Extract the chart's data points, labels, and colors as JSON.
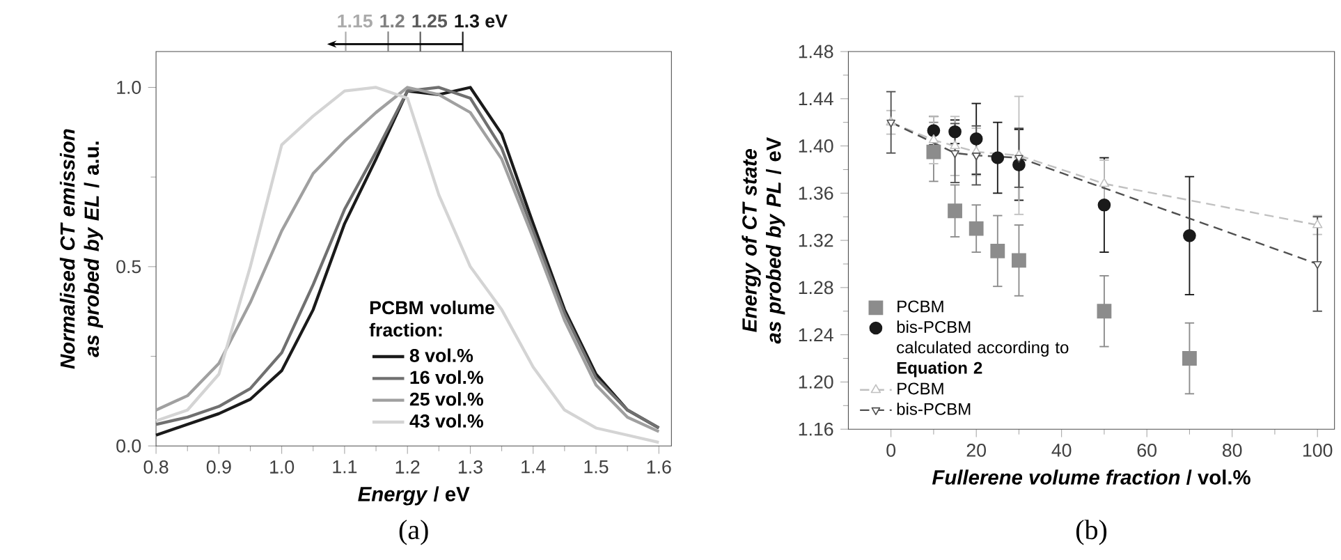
{
  "chart_data": [
    {
      "type": "line",
      "xlabel": "*Energy* / eV",
      "ylabel": "*Normalised CT emission as probed by EL* / a.u.",
      "subtitle": "(a)",
      "legend_title": "PCBM volume fraction:",
      "legend": "bottom",
      "xlim": [
        0.8,
        1.62
      ],
      "ylim": [
        0,
        1.1
      ],
      "xticks": [
        0.8,
        0.9,
        {
          "value": 1,
          "label": "1.0"
        },
        1.1,
        1.2,
        1.3,
        1.4,
        1.5,
        1.6
      ],
      "yticks": [
        {
          "value": 0,
          "label": "0.0"
        },
        0.5,
        {
          "value": 1,
          "label": "1.0"
        }
      ],
      "x": [
        0.8,
        0.85,
        0.9,
        0.95,
        1.0,
        1.05,
        1.1,
        1.15,
        1.2,
        1.25,
        1.3,
        1.35,
        1.4,
        1.45,
        1.5,
        1.55,
        1.6
      ],
      "series": [
        {
          "name": "8 vol.%",
          "color": "#1a1a1a",
          "values": [
            0.03,
            0.06,
            0.09,
            0.13,
            0.21,
            0.38,
            0.62,
            0.8,
            0.99,
            0.98,
            1.0,
            0.87,
            0.62,
            0.38,
            0.2,
            0.1,
            0.05
          ]
        },
        {
          "name": "16 vol.%",
          "color": "#707070",
          "values": [
            0.06,
            0.08,
            0.11,
            0.16,
            0.26,
            0.45,
            0.66,
            0.82,
            0.99,
            1.0,
            0.97,
            0.83,
            0.6,
            0.37,
            0.19,
            0.1,
            0.05
          ]
        },
        {
          "name": "25 vol.%",
          "color": "#a0a0a0",
          "values": [
            0.1,
            0.14,
            0.23,
            0.4,
            0.6,
            0.76,
            0.85,
            0.93,
            1.0,
            0.98,
            0.93,
            0.8,
            0.58,
            0.35,
            0.17,
            0.08,
            0.04
          ]
        },
        {
          "name": "43 vol.%",
          "color": "#d4d4d4",
          "values": [
            0.07,
            0.1,
            0.2,
            0.5,
            0.84,
            0.92,
            0.99,
            1.0,
            0.97,
            0.7,
            0.5,
            0.38,
            0.22,
            0.1,
            0.05,
            0.03,
            0.01
          ]
        }
      ],
      "annotations": [
        "1.15",
        "1.2",
        "1.25",
        "1.3 eV"
      ]
    },
    {
      "type": "scatter",
      "xlabel": "*Fullerene volume fraction* / vol.%",
      "ylabel": "*Energy of CT state as probed by PL* / eV",
      "subtitle": "(b)",
      "legend": "bottom left",
      "xlim": [
        -10,
        104
      ],
      "ylim": [
        1.16,
        1.48
      ],
      "xticks": [
        0,
        20,
        40,
        60,
        80,
        100
      ],
      "yticks": [
        1.16,
        {
          "value": 1.2,
          "label": "1.20"
        },
        1.24,
        1.28,
        1.32,
        1.36,
        {
          "value": 1.4,
          "label": "1.40"
        },
        1.44,
        1.48
      ],
      "series": [
        {
          "name": "PCBM",
          "type": "scatter",
          "marker": "square",
          "color": "#8c8c8c",
          "x": [
            10,
            15,
            20,
            25,
            30,
            50,
            70
          ],
          "values": [
            1.395,
            1.345,
            1.33,
            1.311,
            1.303,
            1.26,
            1.22
          ],
          "errors": [
            0.025,
            0.022,
            0.02,
            0.03,
            0.03,
            0.03,
            0.03
          ]
        },
        {
          "name": "bis-PCBM",
          "type": "scatter",
          "marker": "circle",
          "color": "#1a1a1a",
          "x": [
            10,
            15,
            20,
            25,
            30,
            50,
            70
          ],
          "values": [
            1.413,
            1.412,
            1.406,
            1.39,
            1.384,
            1.35,
            1.324
          ],
          "errors": [
            0.012,
            0.01,
            0.03,
            0.03,
            0.03,
            0.04,
            0.05
          ]
        },
        {
          "name": "PCBM",
          "type": "line",
          "marker": "triangle",
          "line_style": "dashed",
          "color": "#c0c0c0",
          "x": [
            0,
            10,
            15,
            20,
            30,
            50,
            100
          ],
          "values": [
            1.42,
            1.405,
            1.4,
            1.395,
            1.392,
            1.368,
            1.333
          ],
          "errors": [
            0.01,
            0.02,
            0.025,
            0.02,
            0.05,
            0.02,
            0.008
          ]
        },
        {
          "name": "bis-PCBM",
          "type": "line",
          "marker": "triangle down",
          "line_style": "dashed",
          "color": "#505050",
          "x": [
            0,
            15,
            20,
            30,
            100
          ],
          "values": [
            1.42,
            1.394,
            1.392,
            1.39,
            1.3
          ],
          "errors": [
            0.026,
            0.025,
            0.025,
            0.025,
            0.04
          ]
        }
      ],
      "annotations": [
        "calculated according to **Equation 2**"
      ]
    }
  ]
}
